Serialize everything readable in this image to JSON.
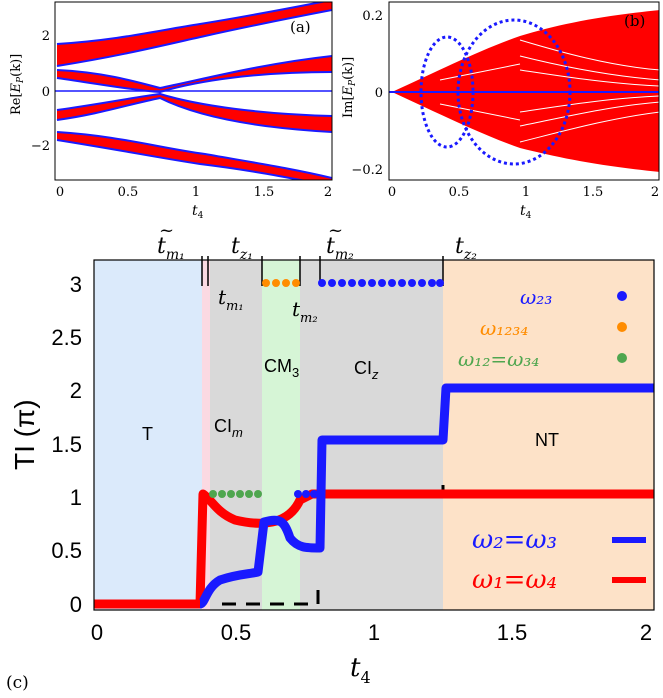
{
  "colors": {
    "red": "#ff0000",
    "blue": "#1a1aff",
    "orange": "#ff8c00",
    "green": "#4fa64f",
    "region_T": "#dbeafb",
    "region_pink": "#fbd9e2",
    "region_CIm": "#d9d9d9",
    "region_CM3": "#d6f5d6",
    "region_CIz": "#d9d9d9",
    "region_NT": "#fde2c8"
  },
  "panel_a": {
    "label": "(a)",
    "ylabel": "Re[E_P(k)]",
    "xlabel": "t4",
    "xticks": [
      "0",
      "0.5",
      "1",
      "1.5",
      "2"
    ],
    "yticks": [
      "2",
      "0",
      "−2"
    ]
  },
  "panel_b": {
    "label": "(b)",
    "ylabel": "Im[E_P(k)]",
    "xlabel": "t4",
    "xticks": [
      "0",
      "0.5",
      "1",
      "1.5",
      "2"
    ],
    "yticks": [
      "0.2",
      "0",
      "−0.2"
    ]
  },
  "panel_c": {
    "label": "(c)",
    "ylabel": "TI (π)",
    "xlabel": "t4",
    "xticks": [
      "0",
      "0.5",
      "1",
      "1.5",
      "2"
    ],
    "yticks": [
      "0",
      "0.5",
      "1",
      "1.5",
      "2",
      "2.5",
      "3"
    ],
    "regions": {
      "T": "T",
      "CIm": "CI",
      "CIm_sub": "m",
      "CM3": "CM",
      "CM3_sub": "3",
      "CIz": "CI",
      "CIz_sub": "z",
      "NT": "NT"
    },
    "top_labels": {
      "tm1_tilde": "t",
      "tm1_tilde_sub": "m₁",
      "tz1": "t",
      "tz1_sub": "z₁",
      "tm2_tilde": "t",
      "tm2_tilde_sub": "m₂",
      "tz2": "t",
      "tz2_sub": "z₂",
      "tm1": "t",
      "tm1_sub": "m₁",
      "tm2": "t",
      "tm2_sub": "m₂"
    },
    "legend_dots": [
      {
        "label": "ω₂₃",
        "color": "blue"
      },
      {
        "label": "ω₁₂₃₄",
        "color": "orange"
      },
      {
        "label": "ω₁₂=ω₃₄",
        "color": "green"
      }
    ],
    "legend_lines": [
      {
        "label": "ω₂=ω₃",
        "color": "blue"
      },
      {
        "label": "ω₁=ω₄",
        "color": "red"
      }
    ]
  },
  "chart_data": [
    {
      "type": "line",
      "xlabel": "t4",
      "ylabel": "Re[E_P(k)]",
      "xlim": [
        0,
        2
      ],
      "ylim": [
        -3.2,
        3.2
      ],
      "series": [
        {
          "name": "",
          "x": [
            0,
            0.25,
            0.5,
            0.65,
            0.75,
            1,
            1.5,
            2
          ],
          "values": [
            1.5,
            1.45,
            0.8,
            0.0,
            0.6,
            1.0,
            1.0,
            1.0
          ]
        }
      ]
    },
    {
      "type": "scatter",
      "xlabel": "t4",
      "ylabel": "Im[E_P(k)]",
      "xlim": [
        0,
        2
      ],
      "ylim": [
        -0.22,
        0.22
      ],
      "series": [
        {
          "name": "",
          "x": [
            0.38,
            0.55,
            0.62,
            0.55,
            0.38
          ],
          "values": [
            0,
            0.1,
            0,
            -0.1,
            0
          ]
        },
        {
          "name": "",
          "x": [
            0.58,
            0.88,
            1.25,
            0.88,
            0.58
          ],
          "values": [
            0,
            0.185,
            0,
            -0.185,
            0
          ]
        }
      ]
    },
    {
      "type": "line",
      "xlabel": "t4",
      "ylabel": "TI (π)",
      "xlim": [
        0,
        2
      ],
      "ylim": [
        0,
        3.2
      ],
      "series": [
        {
          "name": "ω₂=ω₃",
          "x": [
            0,
            0.4,
            0.42,
            0.55,
            0.6,
            0.62,
            0.72,
            0.73,
            0.8,
            0.82,
            1.25,
            1.27,
            2.0
          ],
          "values": [
            0,
            0,
            0.05,
            0.25,
            0.3,
            0.7,
            0.75,
            0.5,
            0.5,
            1.5,
            1.5,
            2.0,
            2.0
          ]
        },
        {
          "name": "ω₁=ω₄",
          "x": [
            0,
            0.38,
            0.39,
            0.42,
            0.55,
            0.62,
            0.72,
            0.73,
            2.0
          ],
          "values": [
            0,
            0,
            1.0,
            0.85,
            0.75,
            0.75,
            0.95,
            1.0,
            1.0
          ]
        },
        {
          "name": "ω₂₃",
          "x": [
            0.8,
            0.9,
            1.0,
            1.1,
            1.25
          ],
          "values": [
            3,
            3,
            3,
            3,
            3
          ]
        },
        {
          "name": "ω₁₂₃₄",
          "x": [
            0.6,
            0.65,
            0.7
          ],
          "values": [
            3,
            3,
            3
          ]
        },
        {
          "name": "ω₁₂=ω₃₄",
          "x": [
            0.4,
            0.45,
            0.5,
            0.55
          ],
          "values": [
            1,
            1,
            1,
            1
          ]
        }
      ]
    }
  ]
}
